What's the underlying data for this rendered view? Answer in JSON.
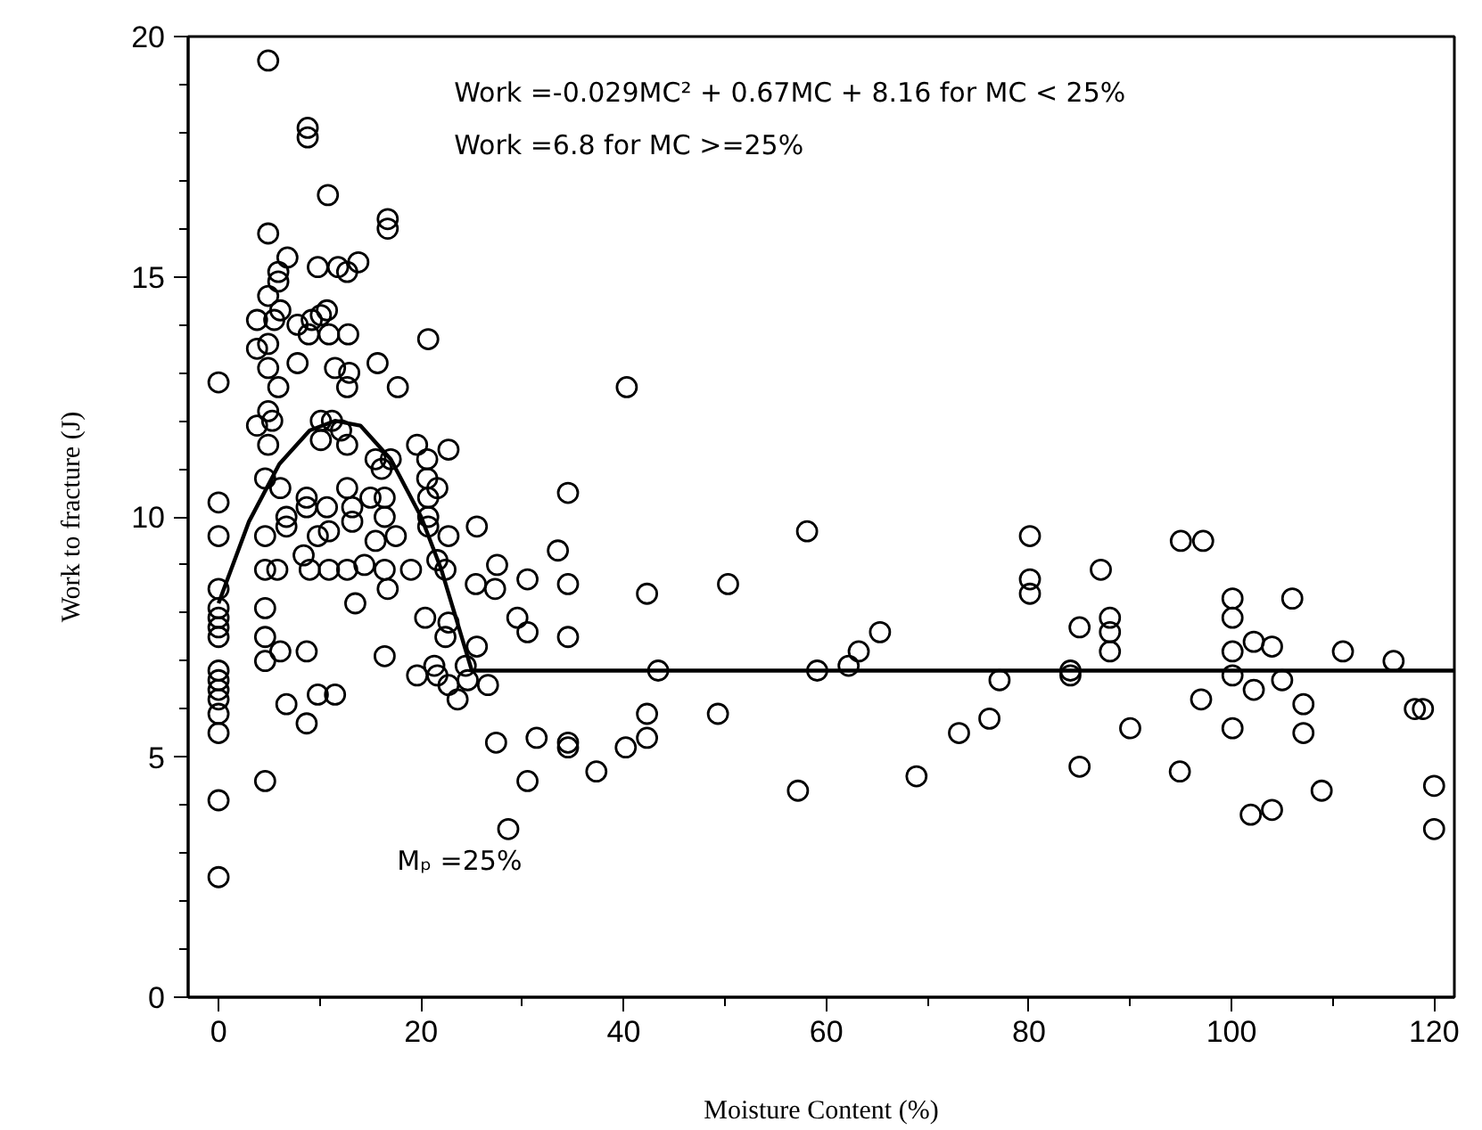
{
  "chart_data": {
    "type": "scatter",
    "xlabel": "Moisture Content (%)",
    "ylabel": "Work to fracture (J)",
    "annotations": [
      "Work =-0.029MC² + 0.67MC + 8.16 for MC < 25%",
      "Work =6.8 for MC >=25%",
      "Mₚ =25%"
    ],
    "xlim": [
      -3,
      122
    ],
    "ylim": [
      0,
      20
    ],
    "xticks": [
      0,
      {
        "value": 10,
        "label": null
      },
      20,
      {
        "value": 30,
        "label": null
      },
      40,
      {
        "value": 50,
        "label": null
      },
      60,
      {
        "value": 70,
        "label": null
      },
      80,
      {
        "value": 90,
        "label": null
      },
      100,
      {
        "value": 110,
        "label": null
      },
      120
    ],
    "yticks": [
      0,
      {
        "value": 1,
        "label": null
      },
      {
        "value": 2,
        "label": null
      },
      {
        "value": 3,
        "label": null
      },
      {
        "value": 4,
        "label": null
      },
      5,
      {
        "value": 6,
        "label": null
      },
      {
        "value": 7,
        "label": null
      },
      {
        "value": 8,
        "label": null
      },
      {
        "value": 9,
        "label": null
      },
      10,
      {
        "value": 11,
        "label": null
      },
      {
        "value": 12,
        "label": null
      },
      {
        "value": 13,
        "label": null
      },
      {
        "value": 14,
        "label": null
      },
      15,
      {
        "value": 16,
        "label": null
      },
      {
        "value": 17,
        "label": null
      },
      {
        "value": 18,
        "label": null
      },
      {
        "value": 19,
        "label": null
      },
      20
    ],
    "grid": false,
    "line_style": "solid",
    "series": [
      {
        "marker": "circle",
        "color": "#000000",
        "x": [
          0,
          0,
          0,
          0,
          0,
          0,
          0,
          0,
          0,
          0,
          0,
          0,
          0,
          0,
          0,
          0,
          4.9,
          8.8,
          8.8,
          10.8,
          16.7,
          16.7,
          4.9,
          6.8,
          5.9,
          5.9,
          9.8,
          11.8,
          12.7,
          13.8,
          4.9,
          3.8,
          5.5,
          6.1,
          7.8,
          9.2,
          10.1,
          10.7,
          8.9,
          10.9,
          12.8,
          3.8,
          4.9,
          7.8,
          4.9,
          11.5,
          12.9,
          12.7,
          15.7,
          17.7,
          20.7,
          5.9,
          4.9,
          3.8,
          5.3,
          4.9,
          10.1,
          11.2,
          12.1,
          10.1,
          12.7,
          15.5,
          17.0,
          16.1,
          19.6,
          22.7,
          20.6,
          20.6,
          21.6,
          4.6,
          6.1,
          6.7,
          8.7,
          8.7,
          10.7,
          12.7,
          13.2,
          15.0,
          16.4,
          16.4,
          20.7,
          20.7,
          20.7,
          22.7,
          21.6,
          19.0,
          22.4,
          4.6,
          6.7,
          9.8,
          10.9,
          13.2,
          15.5,
          17.5,
          4.6,
          5.8,
          8.4,
          9.0,
          10.9,
          12.7,
          14.4,
          16.4,
          4.6,
          13.5,
          16.7,
          4.6,
          6.1,
          4.6,
          8.7,
          16.4,
          20.4,
          22.7,
          22.4,
          24.4,
          19.6,
          21.3,
          21.6,
          22.7,
          23.6,
          6.7,
          9.8,
          11.5,
          8.7,
          4.6,
          40.3,
          34.5,
          58.1,
          33.5,
          25.5,
          27.5,
          30.5,
          34.5,
          25.4,
          27.3,
          42.3,
          50.3,
          29.5,
          30.5,
          34.5,
          25.5,
          24.6,
          26.6,
          43.4,
          59.1,
          62.2,
          63.2,
          65.3,
          42.3,
          49.3,
          27.4,
          31.4,
          34.5,
          34.5,
          40.2,
          42.3,
          30.5,
          37.3,
          57.2,
          68.9,
          28.6,
          80.1,
          80.1,
          80.1,
          87.1,
          85.0,
          88.0,
          88.0,
          88.0,
          95.0,
          97.2,
          100.1,
          100.1,
          100.1,
          100.1,
          100.1,
          102.2,
          102.2,
          104.0,
          106.0,
          105.0,
          107.1,
          107.1,
          111.0,
          116.0,
          118.1,
          118.9,
          120.0,
          120.0,
          108.9,
          101.9,
          104.0,
          97.0,
          94.9,
          90.0,
          84.1,
          84.1,
          85.0,
          77.1,
          76.1,
          73.1
        ],
        "values": [
          12.8,
          10.3,
          9.6,
          8.5,
          8.1,
          7.9,
          7.7,
          7.5,
          6.8,
          6.6,
          6.4,
          6.2,
          5.9,
          5.5,
          4.1,
          2.5,
          19.5,
          18.1,
          17.9,
          16.7,
          16.2,
          16.0,
          15.9,
          15.4,
          15.1,
          14.9,
          15.2,
          15.2,
          15.1,
          15.3,
          14.6,
          14.1,
          14.1,
          14.3,
          14.0,
          14.1,
          14.2,
          14.3,
          13.8,
          13.8,
          13.8,
          13.5,
          13.6,
          13.2,
          13.1,
          13.1,
          13.0,
          12.7,
          13.2,
          12.7,
          13.7,
          12.7,
          12.2,
          11.9,
          12.0,
          11.5,
          12.0,
          12.0,
          11.8,
          11.6,
          11.5,
          11.2,
          11.2,
          11.0,
          11.5,
          11.4,
          11.2,
          10.8,
          10.6,
          10.8,
          10.6,
          10.0,
          10.4,
          10.2,
          10.2,
          10.6,
          10.2,
          10.4,
          10.4,
          10.0,
          10.4,
          10.0,
          9.8,
          9.6,
          9.1,
          8.9,
          8.9,
          9.6,
          9.8,
          9.6,
          9.7,
          9.9,
          9.5,
          9.6,
          8.9,
          8.9,
          9.2,
          8.9,
          8.9,
          8.9,
          9.0,
          8.9,
          8.1,
          8.2,
          8.5,
          7.5,
          7.2,
          7.0,
          7.2,
          7.1,
          7.9,
          7.8,
          7.5,
          6.9,
          6.7,
          6.9,
          6.7,
          6.5,
          6.2,
          6.1,
          6.3,
          6.3,
          5.7,
          4.5,
          12.7,
          10.5,
          9.7,
          9.3,
          9.8,
          9.0,
          8.7,
          8.6,
          8.6,
          8.5,
          8.4,
          8.6,
          7.9,
          7.6,
          7.5,
          7.3,
          6.6,
          6.5,
          6.8,
          6.8,
          6.9,
          7.2,
          7.6,
          5.9,
          5.9,
          5.3,
          5.4,
          5.3,
          5.2,
          5.2,
          5.4,
          4.5,
          4.7,
          4.3,
          4.6,
          3.5,
          9.6,
          8.7,
          8.4,
          8.9,
          7.7,
          7.9,
          7.6,
          7.2,
          9.5,
          9.5,
          8.3,
          7.9,
          7.2,
          6.7,
          5.6,
          7.4,
          6.4,
          7.3,
          8.3,
          6.6,
          6.1,
          5.5,
          7.2,
          7.0,
          6.0,
          6.0,
          4.4,
          3.5,
          4.3,
          3.8,
          3.9,
          6.2,
          4.7,
          5.6,
          6.8,
          6.7,
          4.8,
          6.6,
          5.8,
          5.5
        ]
      },
      {
        "type": "line",
        "marker": "none",
        "color": "#000000",
        "x": [
          0,
          3,
          6,
          9,
          11.5,
          14,
          17,
          20,
          22,
          25,
          122
        ],
        "values": [
          8.2,
          9.9,
          11.1,
          11.8,
          12.0,
          11.9,
          11.2,
          10.0,
          8.9,
          6.8,
          6.8
        ]
      }
    ]
  }
}
